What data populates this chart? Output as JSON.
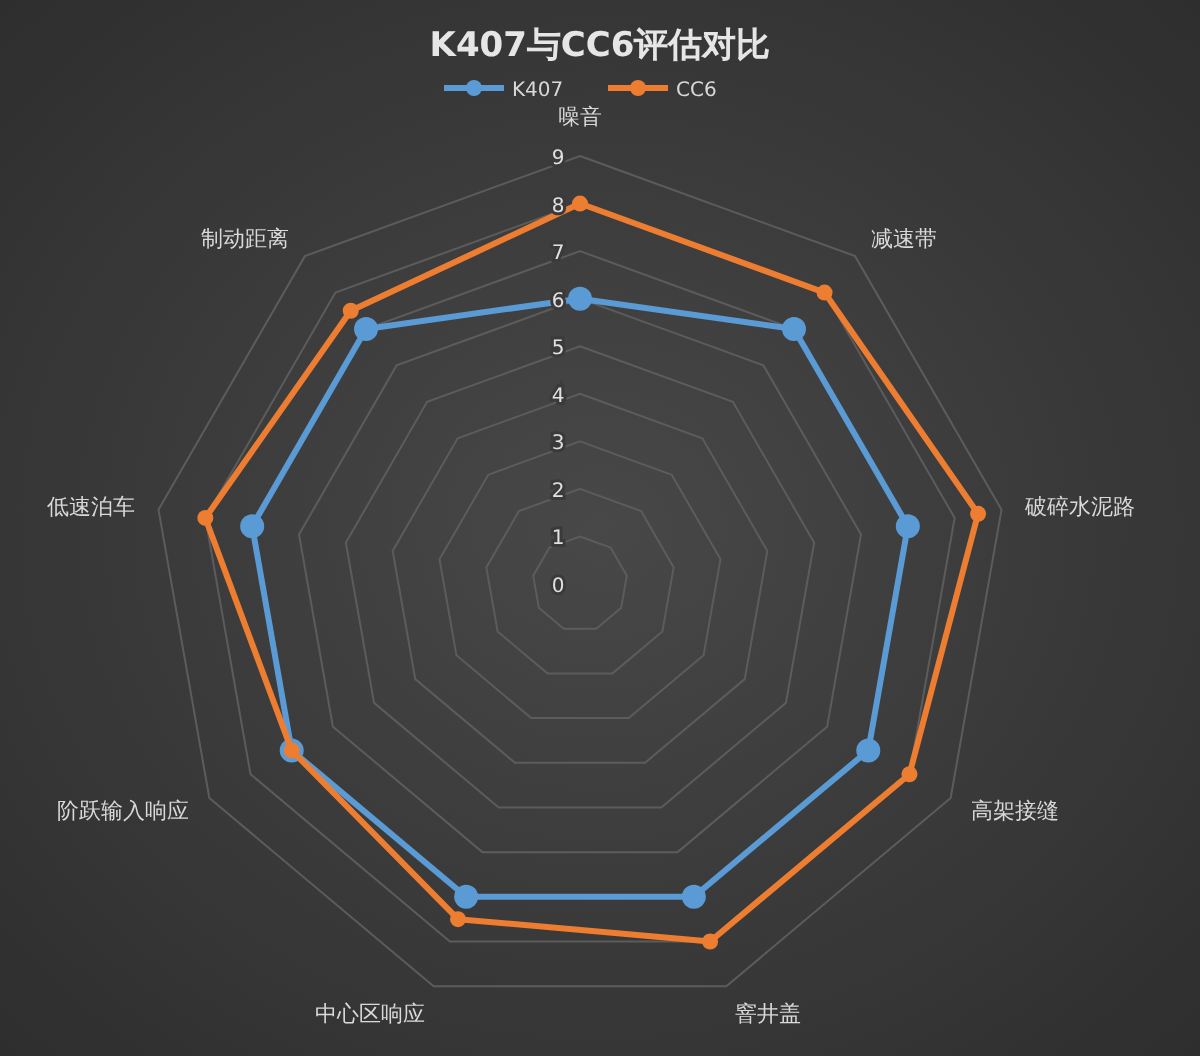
{
  "chart_data": {
    "type": "radar",
    "title": "K407与CC6评估对比",
    "categories": [
      "噪音",
      "减速带",
      "破碎水泥路",
      "高架接缝",
      "窨井盖",
      "中心区响应",
      "阶跃输入响应",
      "低速泊车",
      "制动距离"
    ],
    "series": [
      {
        "name": "K407",
        "color": "#5b9bd5",
        "values": [
          6,
          7,
          7,
          7,
          7,
          7,
          7,
          7,
          7
        ]
      },
      {
        "name": "CC6",
        "color": "#ed7d31",
        "values": [
          8,
          8,
          8.5,
          8,
          8,
          7.5,
          7,
          8,
          7.5
        ]
      }
    ],
    "ylim": [
      0,
      9
    ],
    "yticks": [
      0,
      1,
      2,
      3,
      4,
      5,
      6,
      7,
      8,
      9
    ],
    "grid": true,
    "legend": "top",
    "marker": "circle",
    "line_style": "solid"
  }
}
